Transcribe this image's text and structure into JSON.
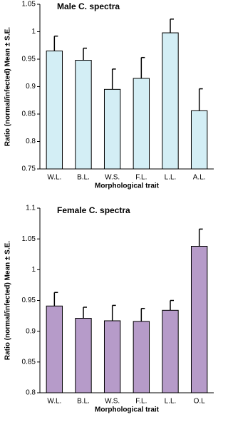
{
  "chart_data": [
    {
      "type": "bar",
      "title": "Male C. spectra",
      "categories": [
        "W.L.",
        "B.L.",
        "W.S.",
        "F.L.",
        "L.L.",
        "A.L."
      ],
      "values": [
        0.965,
        0.948,
        0.895,
        0.915,
        0.998,
        0.856
      ],
      "errors": [
        0.027,
        0.022,
        0.037,
        0.038,
        0.025,
        0.04
      ],
      "color": "#d3eef5",
      "ylim": [
        0.75,
        1.05
      ],
      "yticks": [
        0.75,
        0.8,
        0.85,
        0.9,
        0.95,
        1,
        1.05
      ],
      "ylabel": "Ratio (normal/infected) Mean ± S.E.",
      "xlabel": "Morphological trait"
    },
    {
      "type": "bar",
      "title": "Female C. spectra",
      "categories": [
        "W.L.",
        "B.L.",
        "W.S.",
        "F.L.",
        "L.L.",
        "O.L"
      ],
      "values": [
        0.941,
        0.921,
        0.917,
        0.916,
        0.934,
        1.038
      ],
      "errors": [
        0.022,
        0.018,
        0.025,
        0.021,
        0.016,
        0.028
      ],
      "color": "#b69bc9",
      "ylim": [
        0.8,
        1.1
      ],
      "yticks": [
        0.8,
        0.85,
        0.9,
        0.95,
        1,
        1.05,
        1.1
      ],
      "ylabel": "Ratio (normal/infected) Mean ± S.E.",
      "xlabel": "Morphological trait"
    }
  ]
}
